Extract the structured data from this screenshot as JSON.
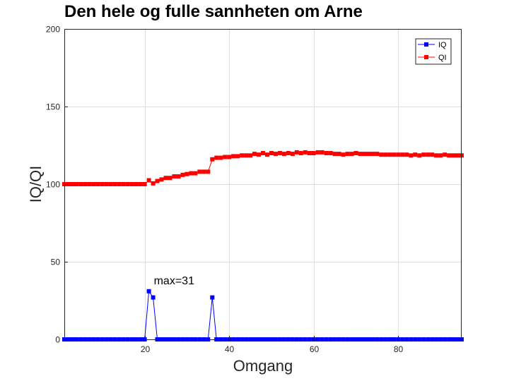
{
  "chart_data": {
    "type": "line",
    "title": "Den hele og fulle sannheten om Arne",
    "xlabel": "Omgang",
    "ylabel": "IQ/QI",
    "xlim": [
      1,
      95
    ],
    "ylim": [
      0,
      200
    ],
    "xticks": [
      20,
      40,
      60,
      80
    ],
    "yticks": [
      0,
      50,
      100,
      150,
      200
    ],
    "grid": true,
    "legend": "top-right",
    "annotation": {
      "text": "max=31",
      "x": 21,
      "y": 31
    },
    "series": [
      {
        "name": "IQ",
        "color": "#0000ff",
        "marker": "square",
        "x": [
          1,
          2,
          3,
          4,
          5,
          6,
          7,
          8,
          9,
          10,
          11,
          12,
          13,
          14,
          15,
          16,
          17,
          18,
          19,
          20,
          21,
          22,
          23,
          24,
          25,
          26,
          27,
          28,
          29,
          30,
          31,
          32,
          33,
          34,
          35,
          36,
          37,
          38,
          39,
          40,
          41,
          42,
          43,
          44,
          45,
          46,
          47,
          48,
          49,
          50,
          51,
          52,
          53,
          54,
          55,
          56,
          57,
          58,
          59,
          60,
          61,
          62,
          63,
          64,
          65,
          66,
          67,
          68,
          69,
          70,
          71,
          72,
          73,
          74,
          75,
          76,
          77,
          78,
          79,
          80,
          81,
          82,
          83,
          84,
          85,
          86,
          87,
          88,
          89,
          90,
          91,
          92,
          93,
          94,
          95
        ],
        "y": [
          0,
          0,
          0,
          0,
          0,
          0,
          0,
          0,
          0,
          0,
          0,
          0,
          0,
          0,
          0,
          0,
          0,
          0,
          0,
          0,
          31,
          27,
          0,
          0,
          0,
          0,
          0,
          0,
          0,
          0,
          0,
          0,
          0,
          0,
          0,
          27,
          0,
          0,
          0,
          0,
          0,
          0,
          0,
          0,
          0,
          0,
          0,
          0,
          0,
          0,
          0,
          0,
          0,
          0,
          0,
          0,
          0,
          0,
          0,
          0,
          0,
          0,
          0,
          0,
          0,
          0,
          0,
          0,
          0,
          0,
          0,
          0,
          0,
          0,
          0,
          0,
          0,
          0,
          0,
          0,
          0,
          0,
          0,
          0,
          0,
          0,
          0,
          0,
          0,
          0,
          0,
          0,
          0,
          0,
          0
        ]
      },
      {
        "name": "QI",
        "color": "#ff0000",
        "marker": "square",
        "x": [
          1,
          2,
          3,
          4,
          5,
          6,
          7,
          8,
          9,
          10,
          11,
          12,
          13,
          14,
          15,
          16,
          17,
          18,
          19,
          20,
          21,
          22,
          23,
          24,
          25,
          26,
          27,
          28,
          29,
          30,
          31,
          32,
          33,
          34,
          35,
          36,
          37,
          38,
          39,
          40,
          41,
          42,
          43,
          44,
          45,
          46,
          47,
          48,
          49,
          50,
          51,
          52,
          53,
          54,
          55,
          56,
          57,
          58,
          59,
          60,
          61,
          62,
          63,
          64,
          65,
          66,
          67,
          68,
          69,
          70,
          71,
          72,
          73,
          74,
          75,
          76,
          77,
          78,
          79,
          80,
          81,
          82,
          83,
          84,
          85,
          86,
          87,
          88,
          89,
          90,
          91,
          92,
          93,
          94,
          95
        ],
        "y": [
          100,
          100,
          100,
          100,
          100,
          100,
          100,
          100,
          100,
          100,
          100,
          100,
          100,
          100,
          100,
          100,
          100,
          100,
          100,
          100,
          102.5,
          100.5,
          102,
          103,
          104,
          104,
          105,
          105,
          106,
          106.5,
          107,
          107,
          108,
          108,
          108,
          116,
          117,
          117,
          117.5,
          117.5,
          118,
          118,
          118.5,
          118.5,
          118.5,
          119.5,
          119,
          120,
          119,
          120,
          119.5,
          120,
          119.5,
          120,
          119.5,
          120.5,
          120,
          120.5,
          120,
          120,
          120.5,
          120.5,
          120,
          120,
          119.5,
          119.5,
          119,
          119.5,
          119.5,
          120,
          119.5,
          119.5,
          119.5,
          119.5,
          119.5,
          119,
          119,
          119,
          119,
          119,
          119,
          119,
          118.5,
          119,
          118.5,
          119,
          119,
          119,
          118.5,
          118.5,
          119,
          118.5,
          118.5,
          118.5,
          118.5
        ]
      }
    ]
  }
}
